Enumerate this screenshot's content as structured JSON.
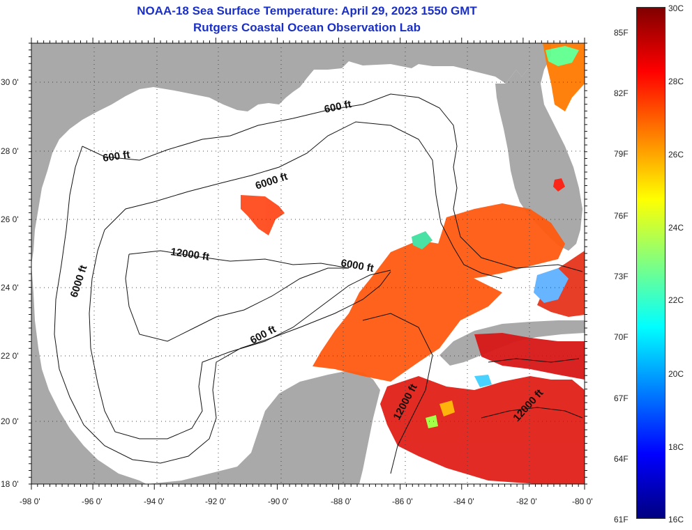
{
  "header": {
    "title": "NOAA-18 Sea Surface Temperature:  April 29, 2023 1550 GMT",
    "subtitle": "Rutgers Coastal Ocean Observation Lab"
  },
  "map": {
    "lon_ticks": [
      "-98 0'",
      "-96 0'",
      "-94 0'",
      "-92 0'",
      "-90 0'",
      "-88 0'",
      "-86 0'",
      "-84 0'",
      "-82 0'",
      "-80 0'"
    ],
    "lat_ticks": [
      "30 0'",
      "28 0'",
      "26 0'",
      "24 0'",
      "22 0'",
      "20 0'",
      "18 0'"
    ],
    "contour_labels": [
      "600 ft",
      "600 ft",
      "6000 ft",
      "12000 ft",
      "6000 ft",
      "6000 ft",
      "600 ft",
      "12000 ft",
      "12000 ft"
    ],
    "colors": {
      "land": "#a9a9a9",
      "water": "#ffffff",
      "title": "#1a2fc8"
    }
  },
  "colorbar": {
    "fahrenheit_labels": [
      "85F",
      "82F",
      "79F",
      "76F",
      "73F",
      "70F",
      "67F",
      "64F",
      "61F"
    ],
    "celsius_labels": [
      "30C",
      "28C",
      "26C",
      "24C",
      "22C",
      "20C",
      "18C",
      "16C"
    ],
    "range_c": [
      16,
      30
    ],
    "colormap": [
      "#000080",
      "#0000ff",
      "#0080ff",
      "#00ffff",
      "#80ff80",
      "#ffff00",
      "#ff8000",
      "#ff0000",
      "#800000"
    ]
  }
}
